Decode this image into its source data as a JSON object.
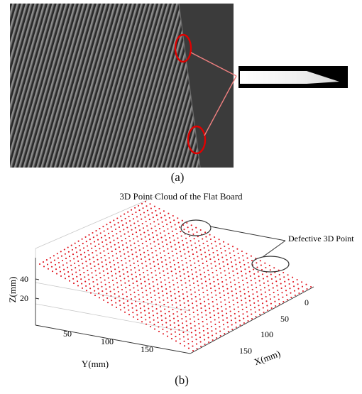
{
  "panel_a": {
    "caption": "(a)"
  },
  "panel_b": {
    "caption": "(b)",
    "title": "3D Point Cloud of the Flat Board",
    "annotation": "Defective 3D Point",
    "axes": {
      "z_label": "Z(mm)",
      "y_label": "Y(mm)",
      "x_label": "X(mm)",
      "z_ticks": [
        "40",
        "20"
      ],
      "y_ticks": [
        "50",
        "100",
        "150"
      ],
      "x_ticks": [
        "0",
        "50",
        "100",
        "150"
      ]
    },
    "point_color": "#e0141e"
  }
}
